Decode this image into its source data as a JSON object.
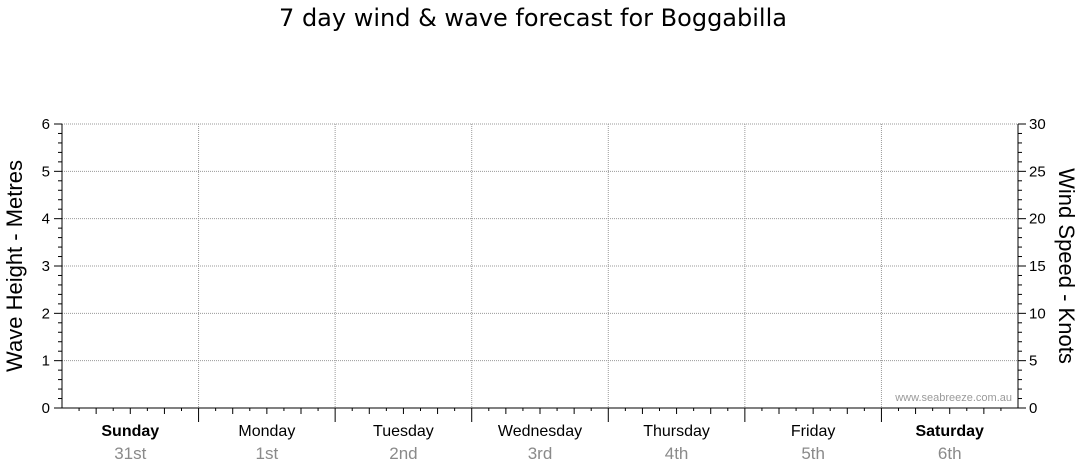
{
  "chart_data": {
    "type": "line",
    "title": "7 day wind & wave forecast for Boggabilla",
    "ylabel_left": "Wave Height - Metres",
    "ylabel_right": "Wind Speed - Knots",
    "ylim_left": [
      0,
      6
    ],
    "ylim_right": [
      0,
      30
    ],
    "yticks_left": [
      "0",
      "1",
      "2",
      "3",
      "4",
      "5",
      "6"
    ],
    "yticks_right": [
      "0",
      "5",
      "10",
      "15",
      "20",
      "25",
      "30"
    ],
    "days": [
      {
        "day": "Sunday",
        "date": "31st",
        "bold": true
      },
      {
        "day": "Monday",
        "date": "1st",
        "bold": false
      },
      {
        "day": "Tuesday",
        "date": "2nd",
        "bold": false
      },
      {
        "day": "Wednesday",
        "date": "3rd",
        "bold": false
      },
      {
        "day": "Thursday",
        "date": "4th",
        "bold": false
      },
      {
        "day": "Friday",
        "date": "5th",
        "bold": false
      },
      {
        "day": "Saturday",
        "date": "6th",
        "bold": true
      }
    ],
    "series": [],
    "grid": true,
    "watermark": "www.seabreeze.com.au"
  }
}
